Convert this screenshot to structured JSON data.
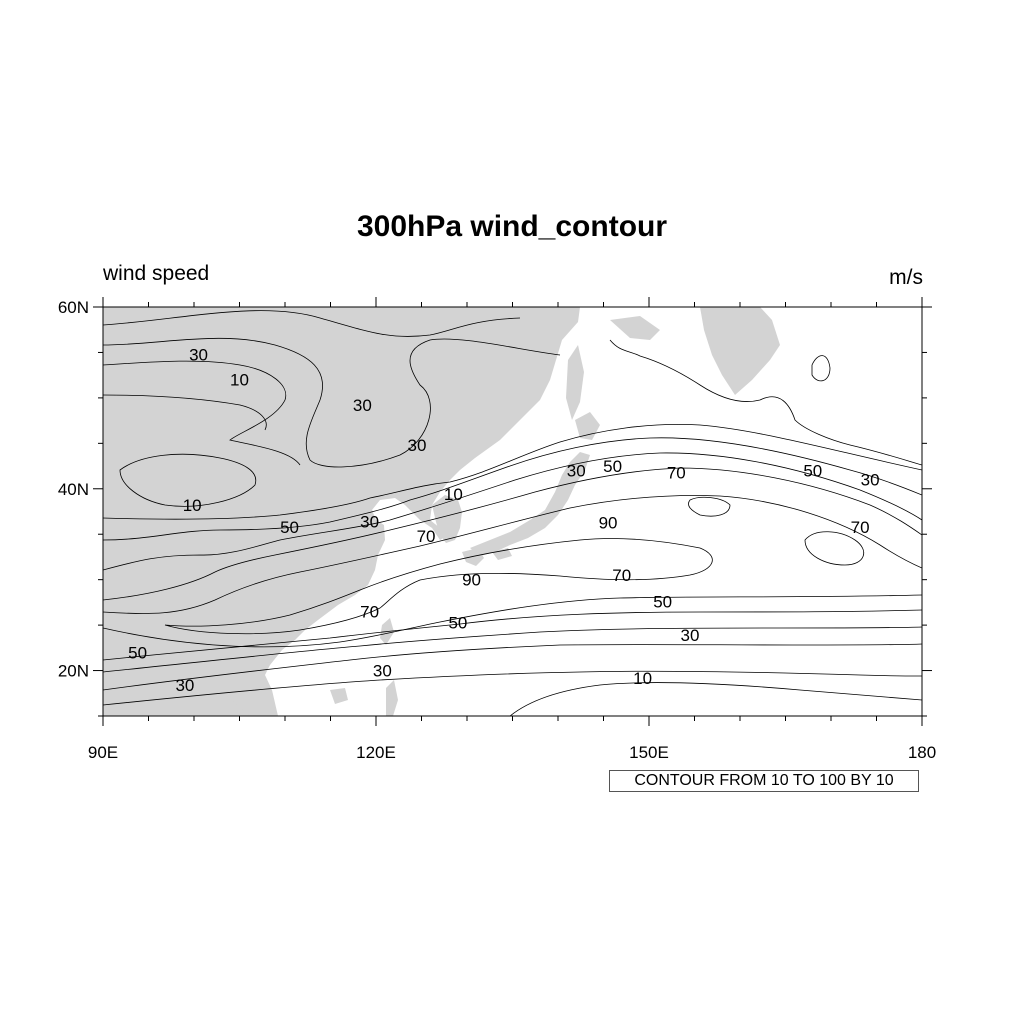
{
  "title": "300hPa wind_contour",
  "left_string": "wind speed",
  "right_string": "m/s",
  "info_label": "CONTOUR FROM 10 TO 100 BY 10",
  "colors": {
    "land": "#d3d3d3",
    "contour": "#000000",
    "background": "#ffffff"
  },
  "chart_data": {
    "type": "contour",
    "variable": "wind speed",
    "units": "m/s",
    "level": "300hPa",
    "xlim": [
      90,
      180
    ],
    "ylim": [
      15,
      60
    ],
    "x_ticks": [
      {
        "value": 90,
        "label": "90E"
      },
      {
        "value": 120,
        "label": "120E"
      },
      {
        "value": 150,
        "label": "150E"
      },
      {
        "value": 180,
        "label": "180"
      }
    ],
    "y_ticks": [
      {
        "value": 60,
        "label": "60N"
      },
      {
        "value": 40,
        "label": "40N"
      },
      {
        "value": 20,
        "label": "20N"
      }
    ],
    "contour_levels": {
      "min": 10,
      "max": 100,
      "step": 10
    },
    "contour_labels": [
      {
        "lon": 100.5,
        "lat": 54.8,
        "value": 30
      },
      {
        "lon": 105.0,
        "lat": 52.0,
        "value": 10
      },
      {
        "lon": 118.5,
        "lat": 49.2,
        "value": 30
      },
      {
        "lon": 124.5,
        "lat": 44.8,
        "value": 30
      },
      {
        "lon": 99.8,
        "lat": 38.2,
        "value": 10
      },
      {
        "lon": 128.5,
        "lat": 39.4,
        "value": 10
      },
      {
        "lon": 119.3,
        "lat": 36.4,
        "value": 30
      },
      {
        "lon": 110.5,
        "lat": 35.8,
        "value": 50
      },
      {
        "lon": 125.5,
        "lat": 34.8,
        "value": 70
      },
      {
        "lon": 142.0,
        "lat": 42.0,
        "value": 30
      },
      {
        "lon": 146.0,
        "lat": 42.5,
        "value": 50
      },
      {
        "lon": 153.0,
        "lat": 41.8,
        "value": 70
      },
      {
        "lon": 168.0,
        "lat": 42.0,
        "value": 50
      },
      {
        "lon": 174.3,
        "lat": 41.0,
        "value": 30
      },
      {
        "lon": 173.2,
        "lat": 35.8,
        "value": 70
      },
      {
        "lon": 145.5,
        "lat": 36.3,
        "value": 90
      },
      {
        "lon": 130.5,
        "lat": 30.0,
        "value": 90
      },
      {
        "lon": 147.0,
        "lat": 30.5,
        "value": 70
      },
      {
        "lon": 119.3,
        "lat": 26.5,
        "value": 70
      },
      {
        "lon": 151.5,
        "lat": 27.6,
        "value": 50
      },
      {
        "lon": 129.0,
        "lat": 25.3,
        "value": 50
      },
      {
        "lon": 154.5,
        "lat": 23.9,
        "value": 30
      },
      {
        "lon": 93.8,
        "lat": 22.0,
        "value": 50
      },
      {
        "lon": 120.7,
        "lat": 20.0,
        "value": 30
      },
      {
        "lon": 99.0,
        "lat": 18.4,
        "value": 30
      },
      {
        "lon": 149.3,
        "lat": 19.2,
        "value": 10
      }
    ]
  }
}
